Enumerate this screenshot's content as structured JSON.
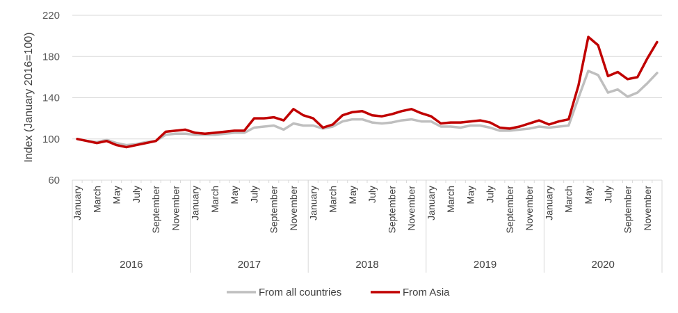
{
  "chart_data": {
    "type": "line",
    "ylabel": "Index (January 2016=100)",
    "xlabel": "",
    "ylim": [
      60,
      220
    ],
    "yticks": [
      60,
      100,
      140,
      180,
      220
    ],
    "grid": "horizontal",
    "legend_position": "bottom",
    "years": [
      "2016",
      "2017",
      "2018",
      "2019",
      "2020"
    ],
    "month_tick_labels": [
      "January",
      "March",
      "May",
      "July",
      "September",
      "November"
    ],
    "series": [
      {
        "name": "From all countries",
        "color": "#bfbfbf",
        "values": [
          100,
          98,
          97,
          99,
          96,
          94,
          95,
          97,
          98,
          104,
          105,
          105,
          104,
          104,
          104,
          105,
          106,
          106,
          111,
          112,
          113,
          109,
          115,
          113,
          113,
          110,
          112,
          117,
          119,
          119,
          116,
          115,
          116,
          118,
          119,
          117,
          117,
          112,
          112,
          111,
          113,
          113,
          111,
          108,
          108,
          109,
          110,
          112,
          111,
          112,
          113,
          140,
          166,
          162,
          145,
          148,
          141,
          145,
          154,
          164
        ]
      },
      {
        "name": "From Asia",
        "color": "#c00000",
        "values": [
          100,
          98,
          96,
          98,
          94,
          92,
          94,
          96,
          98,
          107,
          108,
          109,
          106,
          105,
          106,
          107,
          108,
          108,
          120,
          120,
          121,
          118,
          129,
          123,
          120,
          111,
          114,
          123,
          126,
          127,
          123,
          122,
          124,
          127,
          129,
          125,
          122,
          115,
          116,
          116,
          117,
          118,
          116,
          111,
          110,
          112,
          115,
          118,
          114,
          117,
          119,
          152,
          199,
          191,
          161,
          165,
          158,
          160,
          178,
          194
        ]
      }
    ]
  }
}
